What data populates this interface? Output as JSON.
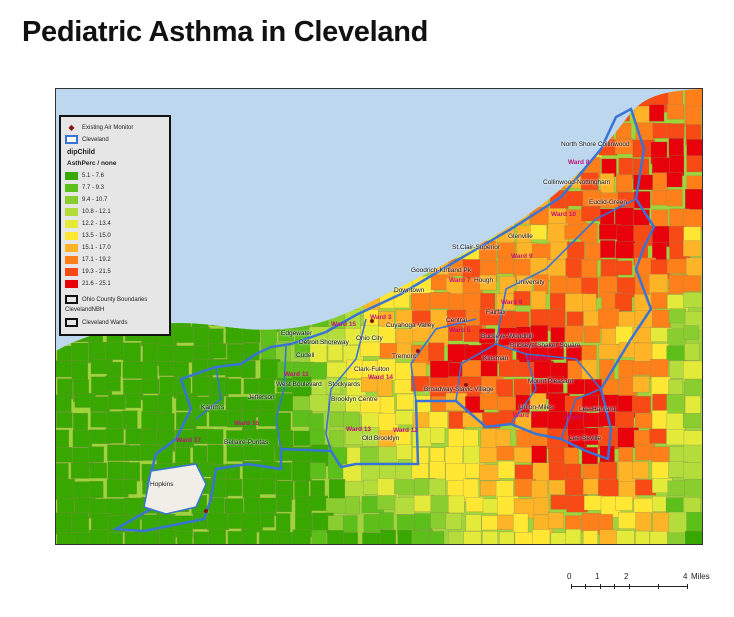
{
  "title": "Pediatric Asthma in Cleveland",
  "legend": {
    "monitor_label": "Existing Air Monitor",
    "cleveland_label": "Cleveland",
    "layer_name": "dipChild",
    "field_name": "AsthPerc / none",
    "classes": [
      {
        "range": "5.1 - 7.6",
        "color": "#38a800"
      },
      {
        "range": "7.7 - 9.3",
        "color": "#5cbf1a"
      },
      {
        "range": "9.4 - 10.7",
        "color": "#89cd2e"
      },
      {
        "range": "10.8 - 12.1",
        "color": "#b4dd3c"
      },
      {
        "range": "12.2 - 13.4",
        "color": "#e3ea3a"
      },
      {
        "range": "13.5 - 15.0",
        "color": "#ffe733"
      },
      {
        "range": "15.1 - 17.0",
        "color": "#ffb327"
      },
      {
        "range": "17.1 - 19.2",
        "color": "#ff7f1a"
      },
      {
        "range": "19.3 - 21.5",
        "color": "#f74a14"
      },
      {
        "range": "21.6 - 25.1",
        "color": "#e8000b"
      }
    ],
    "ohio_label": "Ohio County Boundaries",
    "nbh_label": "ClevelandNBH",
    "wards_label": "Cleveland Wards"
  },
  "colors": {
    "lake": "#bcd7ee",
    "boundary": "#3a73d6",
    "ward_text": "#c0127a",
    "hopkins": "#f0eee6"
  },
  "neighborhoods": [
    "North Shore Collinwood",
    "Collinwood-Nottingham",
    "Euclid-Green",
    "St.Clair-Superior",
    "Glenville",
    "Goodrich-Kirtland Pk",
    "Hough",
    "University",
    "Downtown",
    "Fairfax",
    "Central",
    "Cuyahoga Valley",
    "Edgewater",
    "Detroit Shoreway",
    "Ohio City",
    "Cudell",
    "Tremont",
    "Buckeye-Woodhill",
    "Buckeye-Shaker Square",
    "Kinsman",
    "Clark-Fulton",
    "West Boulevard",
    "Stockyards",
    "Mount Pleasant",
    "Broadway-Slavic Village",
    "Jefferson",
    "Brooklyn Centre",
    "Union-Miles",
    "Lee-Harvard",
    "Kamm's",
    "Lee-Seville",
    "Old Brooklyn",
    "Bellaire-Puritas",
    "Hopkins"
  ],
  "wards": [
    "Ward 8",
    "Ward 10",
    "Ward 9",
    "Ward 7",
    "Ward 6",
    "Ward 5",
    "Ward 3",
    "Ward 15",
    "Ward 4",
    "Ward 11",
    "Ward 14",
    "Ward 2",
    "Ward 1",
    "Ward 16",
    "Ward 13",
    "Ward 12",
    "Ward 17"
  ],
  "scale": {
    "ticks": [
      "0",
      "1",
      "2",
      "4"
    ],
    "unit": "Miles"
  }
}
